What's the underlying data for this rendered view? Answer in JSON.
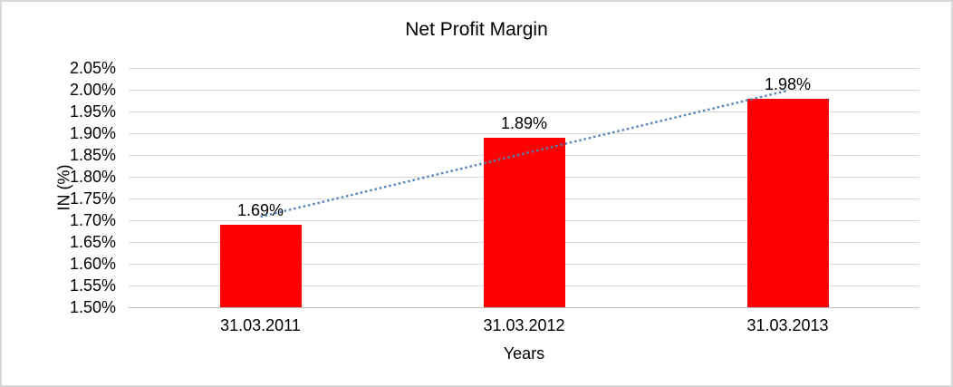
{
  "chart_data": {
    "type": "bar",
    "title": "Net Profit Margin",
    "xlabel": "Years",
    "ylabel": "IN (%)",
    "categories": [
      "31.03.2011",
      "31.03.2012",
      "31.03.2013"
    ],
    "values": [
      1.69,
      1.89,
      1.98
    ],
    "data_labels": [
      "1.69%",
      "1.89%",
      "1.98%"
    ],
    "y_ticks": [
      "2.05%",
      "2.00%",
      "1.95%",
      "1.90%",
      "1.85%",
      "1.80%",
      "1.75%",
      "1.70%",
      "1.65%",
      "1.60%",
      "1.55%",
      "1.50%"
    ],
    "ylim": [
      1.5,
      2.05
    ],
    "y_step": 0.05,
    "grid": true,
    "legend": "none",
    "bar_color": "#ff0000",
    "gridline_color": "#d9d9d9",
    "axisline_color": "#bfbfbf",
    "trendline": {
      "type": "linear",
      "style": "dotted",
      "color": "#4f81bd",
      "start_value": 1.708,
      "end_value": 1.998
    }
  }
}
